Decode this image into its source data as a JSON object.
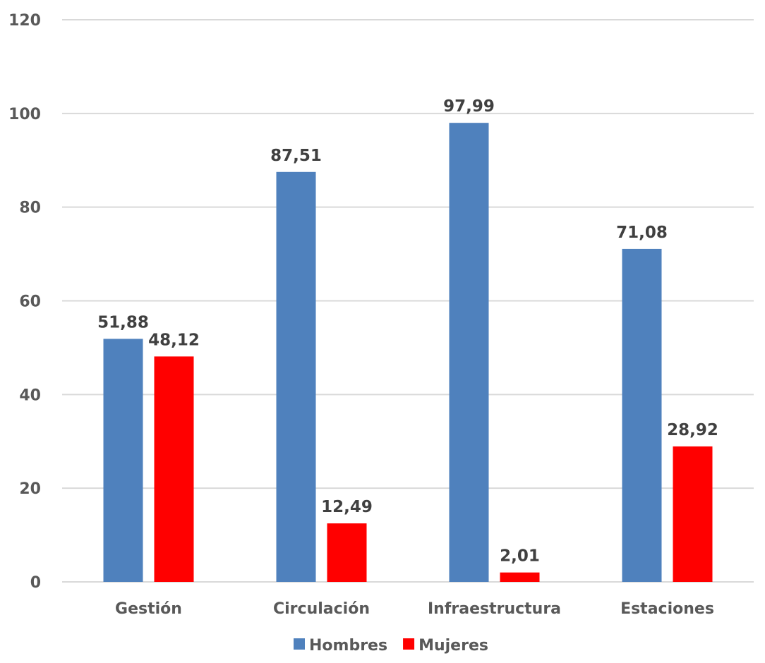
{
  "chart_data": {
    "type": "bar",
    "title": "",
    "xlabel": "",
    "ylabel": "",
    "categories": [
      "Gestión",
      "Circulación",
      "Infraestructura",
      "Estaciones"
    ],
    "series": [
      {
        "name": "Hombres",
        "values": [
          51.88,
          87.51,
          97.99,
          71.08
        ],
        "labels": [
          "51,88",
          "87,51",
          "97,99",
          "71,08"
        ],
        "color": "#4F81BD"
      },
      {
        "name": "Mujeres",
        "values": [
          48.12,
          12.49,
          2.01,
          28.92
        ],
        "labels": [
          "48,12",
          "12,49",
          "2,01",
          "28,92"
        ],
        "color": "#FF0000"
      }
    ],
    "ylim": [
      0,
      120
    ],
    "yticks": [
      0,
      20,
      40,
      60,
      80,
      100,
      120
    ],
    "grid": true,
    "gridline_color": "#D9D9D9",
    "legend": "bottom"
  }
}
